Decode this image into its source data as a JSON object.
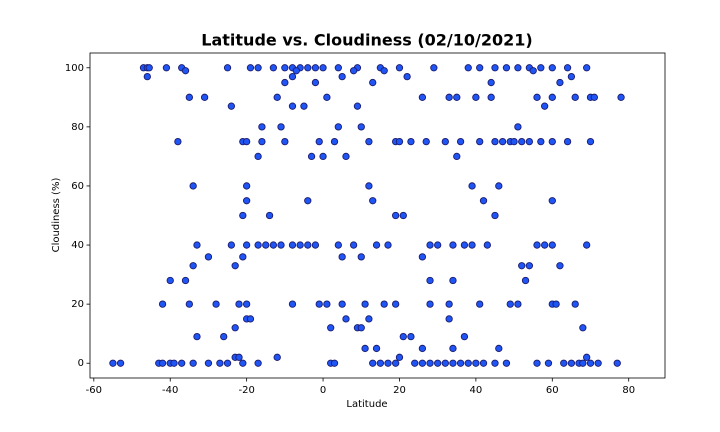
{
  "chart_data": {
    "type": "scatter",
    "title": "Latitude vs. Cloudiness (02/10/2021)",
    "x_label": "Latitude",
    "y_label": "Cloudiness (%)",
    "color": "#1f55f5",
    "edge_color": "#1c1c6e",
    "xlim": [
      -61,
      89.5
    ],
    "ylim": [
      -5,
      105
    ],
    "xticks": [
      -60,
      -40,
      -20,
      0,
      20,
      40,
      60,
      80
    ],
    "yticks": [
      0,
      20,
      40,
      60,
      80,
      100
    ],
    "x": [
      -47,
      -46,
      -45.5,
      -41,
      -37,
      -25,
      -19,
      -17,
      -13,
      -10,
      -8,
      -6,
      -4,
      -2,
      0,
      4,
      9,
      15,
      20,
      29,
      38,
      41,
      45,
      48,
      51,
      54,
      57,
      60,
      64,
      69,
      -36,
      -7,
      8,
      16,
      55,
      -46,
      5,
      22,
      65,
      -8,
      -10,
      -2,
      13,
      44,
      62,
      -35,
      -31,
      -12,
      1,
      26,
      33,
      35,
      40,
      44,
      56,
      60,
      66,
      70,
      71,
      78,
      -8,
      -5,
      9,
      58,
      -24,
      -38,
      -21,
      -20,
      -16,
      -10,
      -1,
      3,
      12,
      19,
      20,
      23,
      27,
      32,
      36,
      41,
      45,
      47,
      49,
      50,
      52,
      54,
      57,
      60,
      64,
      70,
      -16,
      10,
      51,
      -11,
      4,
      -17,
      6,
      35,
      0,
      -3,
      -34,
      -20,
      12,
      39,
      46,
      -20,
      13,
      42,
      60,
      -4,
      -21,
      -14,
      19,
      21,
      45,
      -33,
      -24,
      -20,
      -17,
      -15,
      -13,
      -11,
      -8,
      -6,
      -4,
      4,
      8,
      14,
      17,
      28,
      30,
      34,
      37,
      39,
      43,
      56,
      58,
      60,
      69,
      -2,
      -30,
      -21,
      5,
      10,
      26,
      -34,
      52,
      54,
      62,
      -23,
      -36,
      28,
      53,
      -40,
      34,
      -42,
      -35,
      -28,
      -22,
      -20,
      -8,
      -1,
      1,
      5,
      11,
      16,
      19,
      28,
      33,
      41,
      49,
      51,
      60,
      61,
      66,
      -20,
      12,
      -19,
      33,
      6,
      2,
      9,
      68,
      10,
      -23,
      -33,
      -26,
      21,
      23,
      37,
      11,
      14,
      26,
      34,
      46,
      -23,
      -22,
      -12,
      20,
      69,
      -55,
      -53,
      -43,
      -42,
      -40,
      -39,
      -37,
      -34,
      -30,
      -27,
      -25,
      -21,
      -17,
      2,
      3,
      13,
      15,
      17,
      19,
      24,
      26,
      28,
      30,
      32,
      34,
      36,
      38,
      40,
      42,
      45,
      48,
      56,
      59,
      63,
      65,
      67,
      68,
      70,
      72,
      77
    ],
    "values": [
      100,
      100,
      100,
      100,
      100,
      100,
      100,
      100,
      100,
      100,
      100,
      100,
      100,
      100,
      100,
      100,
      100,
      100,
      100,
      100,
      100,
      100,
      100,
      100,
      100,
      100,
      100,
      100,
      100,
      100,
      99,
      99,
      99,
      99,
      99,
      97,
      97,
      97,
      97,
      97,
      95,
      95,
      95,
      95,
      95,
      90,
      90,
      90,
      90,
      90,
      90,
      90,
      90,
      90,
      90,
      90,
      90,
      90,
      90,
      90,
      87,
      87,
      87,
      87,
      87,
      75,
      75,
      75,
      75,
      75,
      75,
      75,
      75,
      75,
      75,
      75,
      75,
      75,
      75,
      75,
      75,
      75,
      75,
      75,
      75,
      75,
      75,
      75,
      75,
      75,
      80,
      80,
      80,
      80,
      80,
      70,
      70,
      70,
      70,
      70,
      60,
      60,
      60,
      60,
      60,
      55,
      55,
      55,
      55,
      55,
      50,
      50,
      50,
      50,
      50,
      40,
      40,
      40,
      40,
      40,
      40,
      40,
      40,
      40,
      40,
      40,
      40,
      40,
      40,
      40,
      40,
      40,
      40,
      40,
      40,
      40,
      40,
      40,
      40,
      40,
      36,
      36,
      36,
      36,
      36,
      33,
      33,
      33,
      33,
      33,
      28,
      28,
      28,
      28,
      28,
      20,
      20,
      20,
      20,
      20,
      20,
      20,
      20,
      20,
      20,
      20,
      20,
      20,
      20,
      20,
      20,
      20,
      20,
      20,
      20,
      15,
      15,
      15,
      15,
      15,
      12,
      12,
      12,
      12,
      12,
      9,
      9,
      9,
      9,
      9,
      5,
      5,
      5,
      5,
      5,
      2,
      2,
      2,
      2,
      2,
      0,
      0,
      0,
      0,
      0,
      0,
      0,
      0,
      0,
      0,
      0,
      0,
      0,
      0,
      0,
      0,
      0,
      0,
      0,
      0,
      0,
      0,
      0,
      0,
      0,
      0,
      0,
      0,
      0,
      0,
      0,
      0,
      0,
      0,
      0,
      0,
      0,
      0,
      0,
      0
    ]
  }
}
